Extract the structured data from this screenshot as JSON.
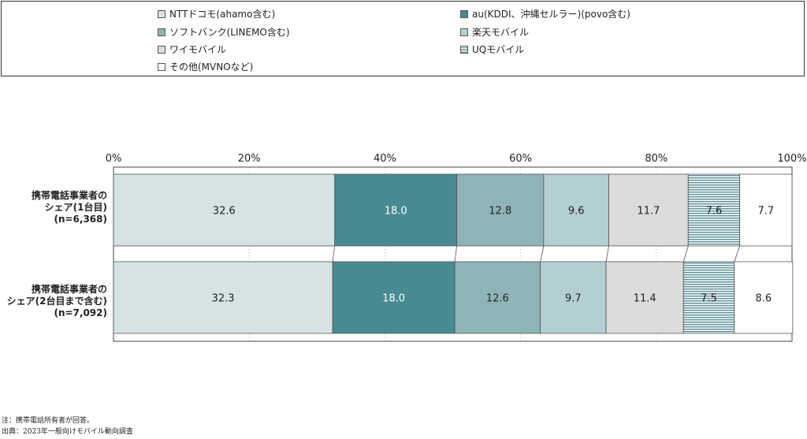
{
  "legend": [
    {
      "label": "NTTドコモ(ahamo含む)",
      "color": "#d5e3e5",
      "pattern": "solid"
    },
    {
      "label": "au(KDDI、沖縄セルラー)(povo含む)",
      "color": "#488a91",
      "pattern": "solid"
    },
    {
      "label": "ソフトバンク(LINEMO含む)",
      "color": "#8fb4b8",
      "pattern": "solid"
    },
    {
      "label": "楽天モバイル",
      "color": "#b4cfd4",
      "pattern": "solid"
    },
    {
      "label": "ワイモバイル",
      "color": "#dcdcdc",
      "pattern": "solid"
    },
    {
      "label": "UQモバイル",
      "color": "#8fb4b8",
      "pattern": "stripes"
    },
    {
      "label": "その他(MVNOなど)",
      "color": "#ffffff",
      "pattern": "solid"
    }
  ],
  "chart_data": {
    "type": "bar",
    "orientation": "horizontal",
    "stacked": true,
    "xlim": [
      0,
      100
    ],
    "x_ticks": [
      "0%",
      "20%",
      "40%",
      "60%",
      "80%",
      "100%"
    ],
    "categories": [
      [
        "携帯電話事業者の",
        "シェア(1台目)",
        "(n=6,368)"
      ],
      [
        "携帯電話事業者の",
        "シェア(2台目まで含む)",
        "(n=7,092)"
      ]
    ],
    "series": [
      {
        "name": "NTTドコモ(ahamo含む)",
        "values": [
          32.6,
          32.3
        ]
      },
      {
        "name": "au(KDDI、沖縄セルラー)(povo含む)",
        "values": [
          18.0,
          18.0
        ]
      },
      {
        "name": "ソフトバンク(LINEMO含む)",
        "values": [
          12.8,
          12.6
        ]
      },
      {
        "name": "楽天モバイル",
        "values": [
          9.6,
          9.7
        ]
      },
      {
        "name": "ワイモバイル",
        "values": [
          11.7,
          11.4
        ]
      },
      {
        "name": "UQモバイル",
        "values": [
          7.6,
          7.5
        ]
      },
      {
        "name": "その他(MVNOなど)",
        "values": [
          7.7,
          8.6
        ]
      }
    ],
    "data_labels": [
      [
        "32.6",
        "18.0",
        "12.8",
        "9.6",
        "11.7",
        "7.6",
        "7.7"
      ],
      [
        "32.3",
        "18.0",
        "12.6",
        "9.7",
        "11.4",
        "7.5",
        "8.6"
      ]
    ],
    "grid": true,
    "legend_position": "top"
  },
  "notes": [
    "注：携帯電話所有者が回答。",
    "出典：2023年一般向けモバイル動向調査"
  ]
}
